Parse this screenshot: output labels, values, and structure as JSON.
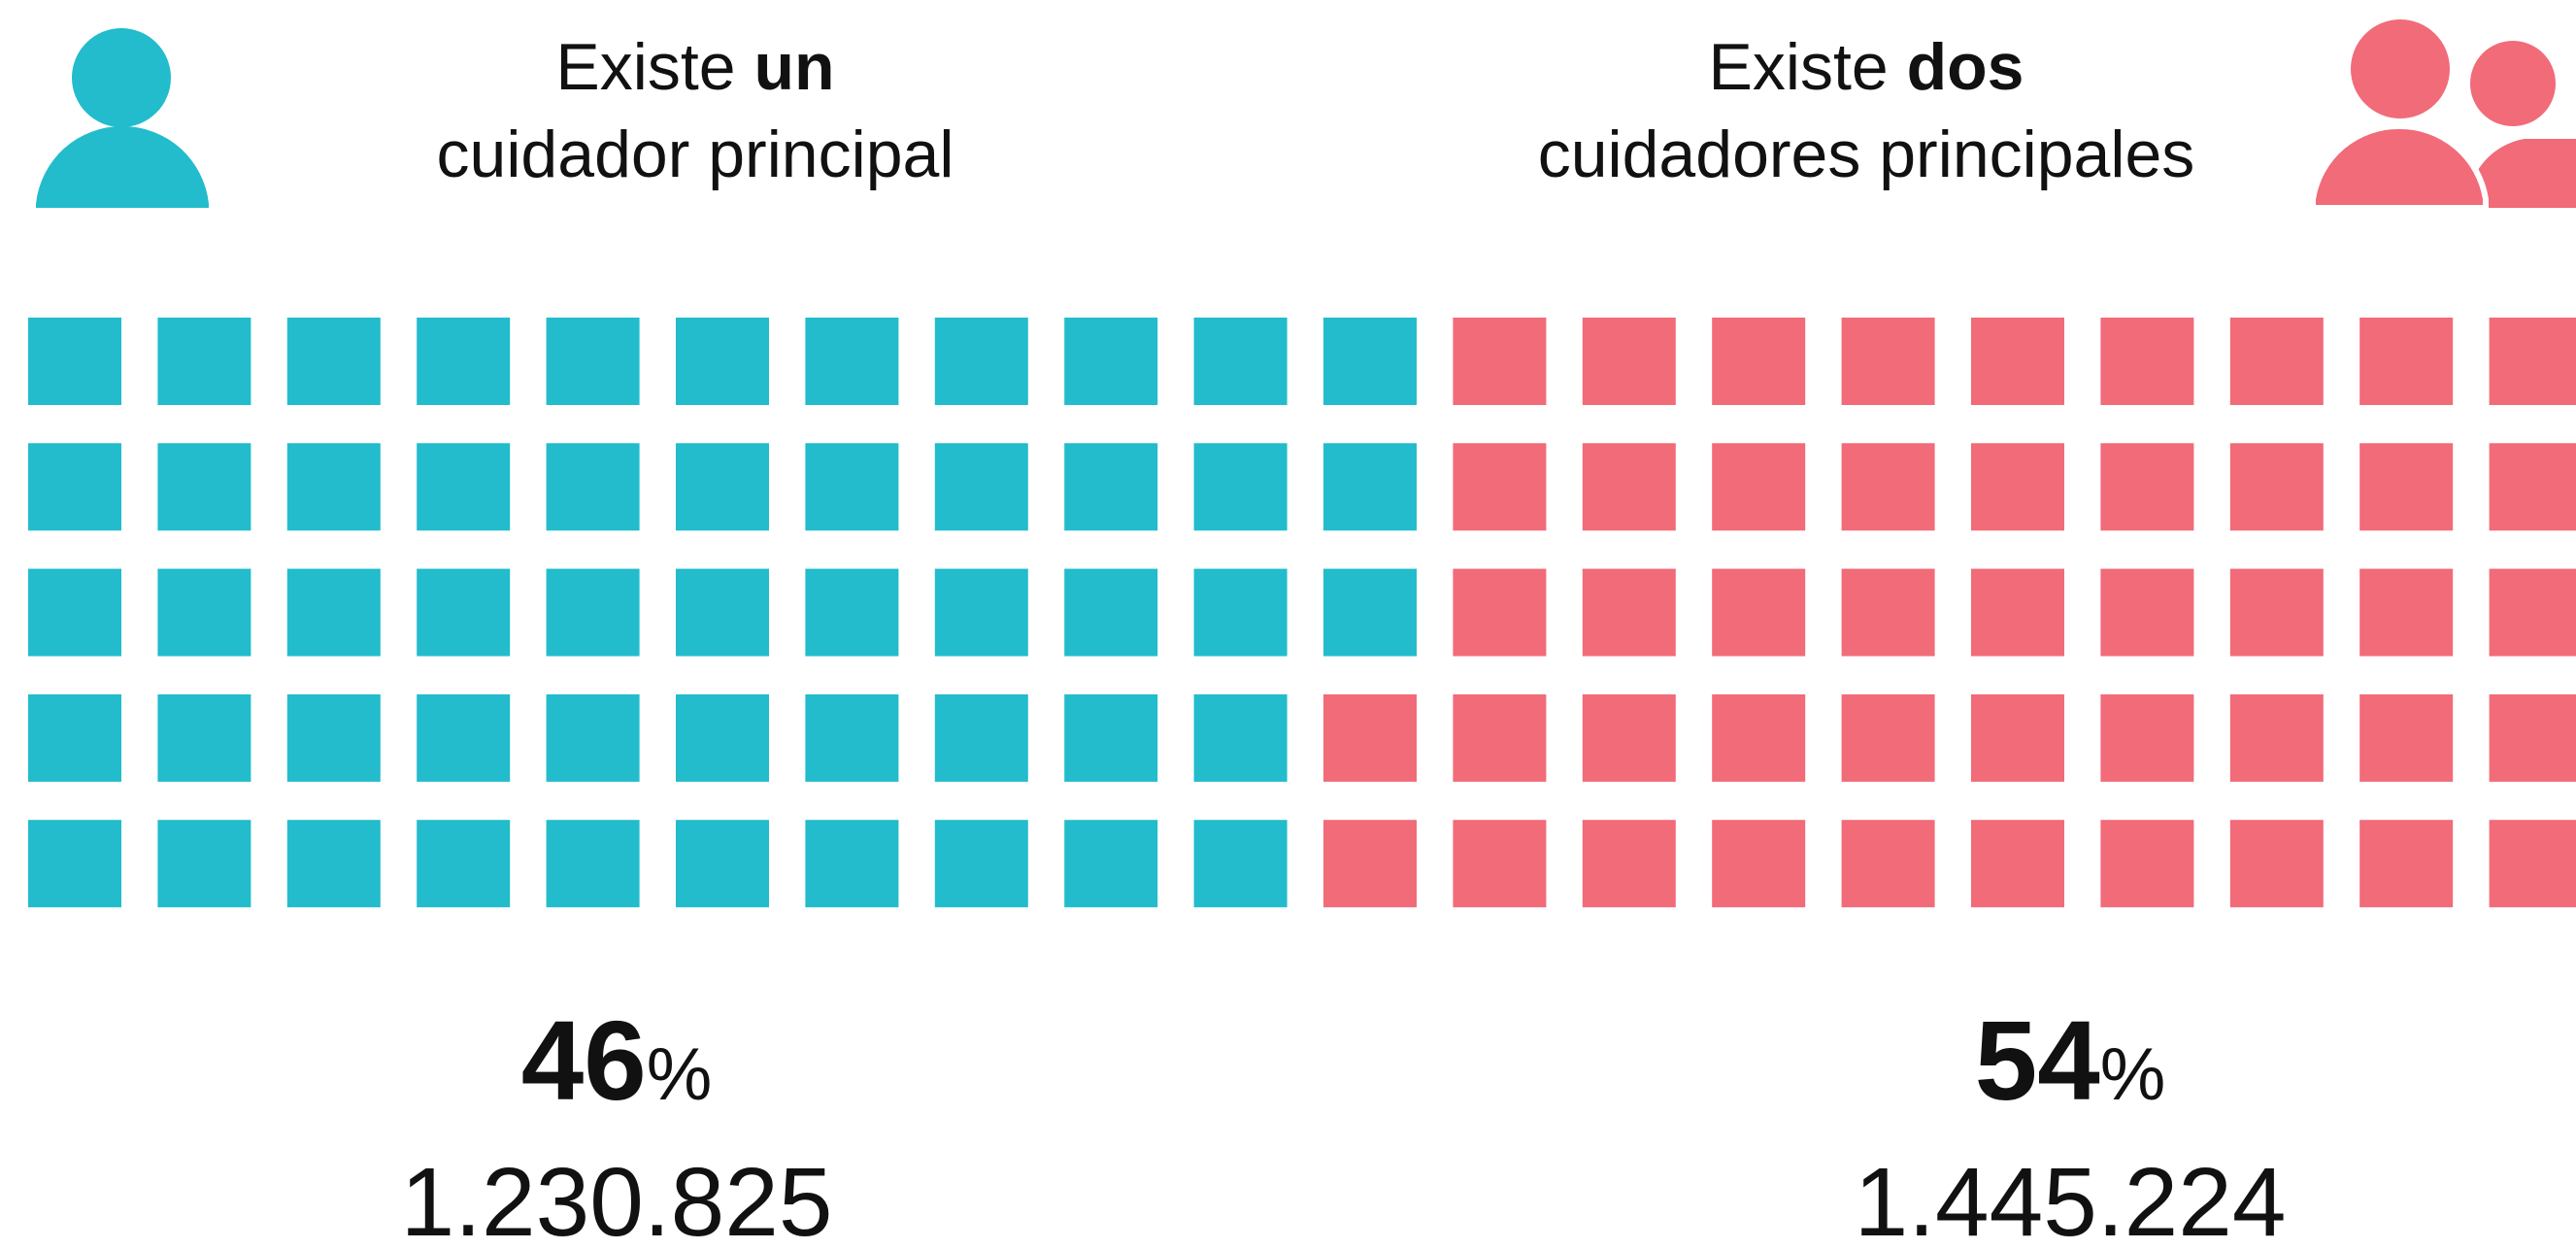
{
  "chart_data": {
    "type": "waffle",
    "series": [
      {
        "name": "Existe un cuidador principal",
        "heading": {
          "text": "Existe",
          "emphasis": "un",
          "line2": "cuidador principal"
        },
        "color": "#22bccc",
        "values": [
          46
        ],
        "value_labels": [
          "46%"
        ],
        "count": 1230825,
        "count_label": "1.230.825"
      },
      {
        "name": "Existe dos cuidadores principales",
        "heading": {
          "text": "Existe",
          "emphasis": "dos",
          "line2": "cuidadores principales"
        },
        "color": "#f16b79",
        "values": [
          54
        ],
        "value_labels": [
          "54%"
        ],
        "count": 1445224,
        "count_label": "1.445.224"
      }
    ]
  }
}
